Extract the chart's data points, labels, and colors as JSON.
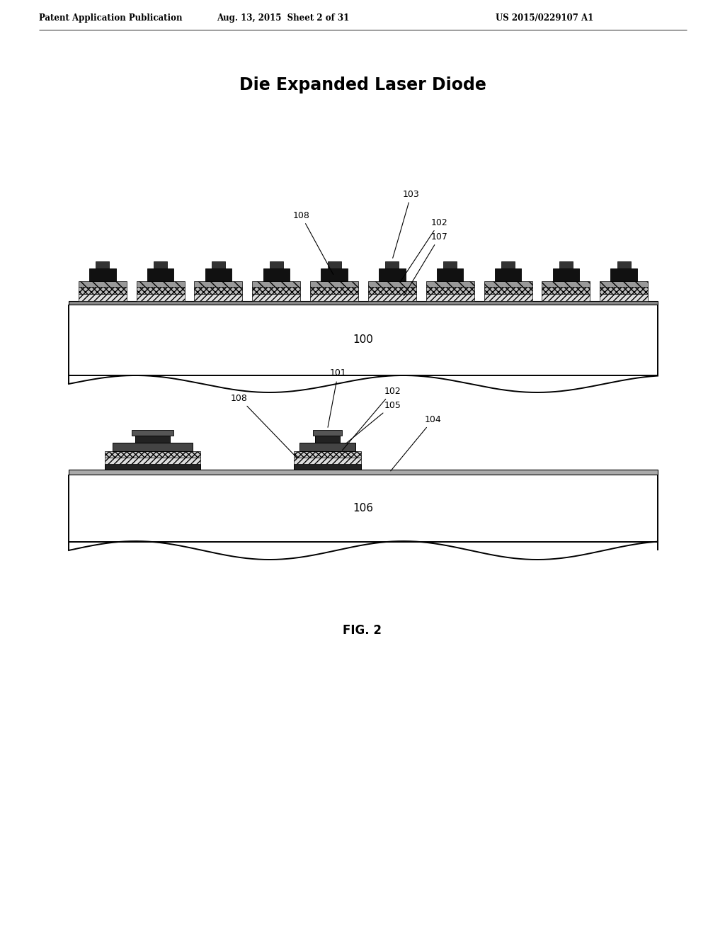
{
  "bg_color": "#ffffff",
  "header_left": "Patent Application Publication",
  "header_mid": "Aug. 13, 2015  Sheet 2 of 31",
  "header_right": "US 2015/0229107 A1",
  "title1": "Die Expanded Laser Diode",
  "fig_label": "FIG. 2",
  "label_100": "100",
  "label_103": "103",
  "label_102_1": "102",
  "label_107": "107",
  "label_108_1": "108",
  "label_106": "106",
  "label_101": "101",
  "label_102_2": "102",
  "label_104": "104",
  "label_105": "105",
  "label_108_2": "108"
}
